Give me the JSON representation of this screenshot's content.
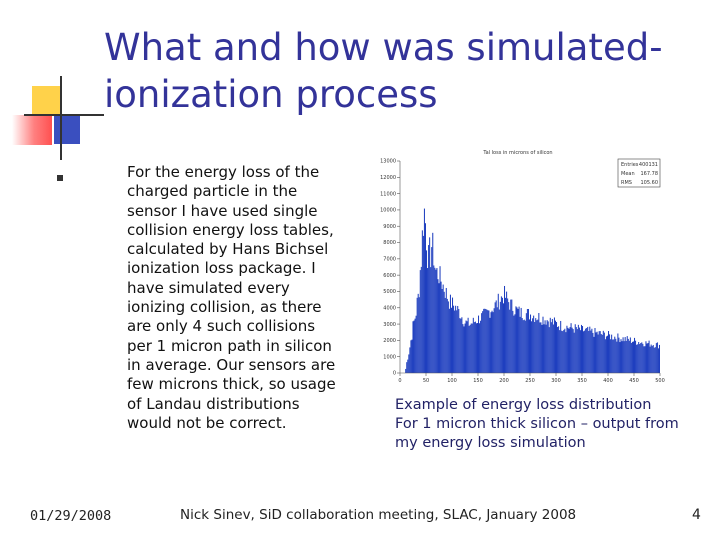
{
  "slide": {
    "title_lines": [
      "What and how was simulated-",
      "ionization process"
    ],
    "body_lines": [
      "For the energy loss of the",
      "charged particle in the",
      "sensor I have used single",
      "collision energy loss tables,",
      "calculated by Hans Bichsel",
      "ionization loss package. I",
      "have simulated every",
      "ionizing collision, as there",
      "are only 4 such collisions",
      "per 1 micron path in silicon",
      "in average. Our sensors are",
      "few microns thick, so usage",
      "of Landau distributions",
      "would not be correct."
    ],
    "caption_lines": [
      "Example of energy loss distribution",
      "For 1 micron thick silicon – output from",
      "my energy loss simulation"
    ],
    "footer_date": "01/29/2008",
    "footer_center": "Nick Sinev, SiD collaboration meeting, SLAC, January 2008",
    "page_number": "4"
  },
  "colors": {
    "title": "#333399",
    "accent_yellow": "#ffd700",
    "accent_red": "#ff6666",
    "accent_blue": "#333399",
    "histogram": "#1f3fbf"
  },
  "chart_data": {
    "type": "bar",
    "title": "Tal loss in microns of silicon",
    "stats": [
      {
        "label": "Entries",
        "value": "400131"
      },
      {
        "label": "Mean",
        "value": "167.78"
      },
      {
        "label": "RMS",
        "value": "105.60"
      }
    ],
    "x_ticks": [
      "0",
      "50",
      "100",
      "150",
      "200",
      "250",
      "300",
      "350",
      "400",
      "450",
      "500"
    ],
    "y_ticks": [
      "0",
      "1000",
      "2000",
      "3000",
      "4000",
      "5000",
      "6000",
      "7000",
      "8000",
      "9000",
      "10000",
      "11000",
      "12000",
      "13000"
    ],
    "xlim": [
      0,
      500
    ],
    "ylim": [
      0,
      13000
    ],
    "profile": [
      [
        0,
        0
      ],
      [
        10,
        0
      ],
      [
        12,
        500
      ],
      [
        18,
        1400
      ],
      [
        25,
        2800
      ],
      [
        30,
        3600
      ],
      [
        35,
        4600
      ],
      [
        42,
        7600
      ],
      [
        46,
        10200
      ],
      [
        50,
        8900
      ],
      [
        55,
        6800
      ],
      [
        62,
        8000
      ],
      [
        68,
        6300
      ],
      [
        75,
        6000
      ],
      [
        85,
        5200
      ],
      [
        95,
        4400
      ],
      [
        105,
        4100
      ],
      [
        115,
        3700
      ],
      [
        125,
        3100
      ],
      [
        135,
        3000
      ],
      [
        150,
        3300
      ],
      [
        165,
        3600
      ],
      [
        185,
        4200
      ],
      [
        200,
        4800
      ],
      [
        215,
        4100
      ],
      [
        230,
        3700
      ],
      [
        250,
        3600
      ],
      [
        280,
        3300
      ],
      [
        310,
        2900
      ],
      [
        340,
        2700
      ],
      [
        370,
        2500
      ],
      [
        400,
        2300
      ],
      [
        430,
        2100
      ],
      [
        460,
        1900
      ],
      [
        480,
        1800
      ],
      [
        500,
        1700
      ]
    ]
  }
}
